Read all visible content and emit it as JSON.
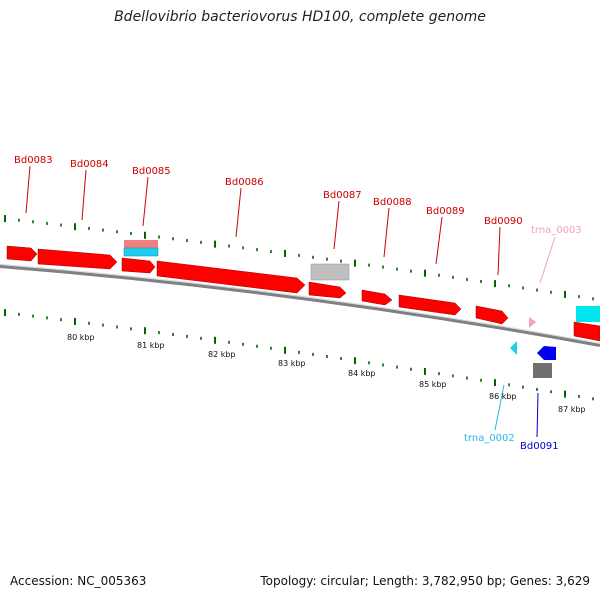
{
  "title": "Bdellovibrio bacteriovorus HD100, complete genome",
  "footer": {
    "accession": "Accession: NC_005363",
    "summary": "Topology: circular; Length: 3,782,950 bp; Genes: 3,629"
  },
  "colors": {
    "gene": "#ff0000",
    "gene_alt": "#0000ee",
    "rrna_pink": "#f08080",
    "trna_cyan": "#22ccee",
    "trna_pink": "#f4a0c0",
    "grey": "#c0c0c0",
    "dark_grey": "#707070",
    "tick": "#006400",
    "backbone": "#808080"
  },
  "scale_labels": [
    "80 kbp",
    "81 kbp",
    "82 kbp",
    "83 kbp",
    "84 kbp",
    "85 kbp",
    "86 kbp",
    "87 kbp"
  ],
  "gene_labels": [
    {
      "text": "Bd0083",
      "color": "#cc0000"
    },
    {
      "text": "Bd0084",
      "color": "#cc0000"
    },
    {
      "text": "Bd0085",
      "color": "#cc0000"
    },
    {
      "text": "Bd0086",
      "color": "#cc0000"
    },
    {
      "text": "Bd0087",
      "color": "#cc0000"
    },
    {
      "text": "Bd0088",
      "color": "#cc0000"
    },
    {
      "text": "Bd0089",
      "color": "#cc0000"
    },
    {
      "text": "Bd0090",
      "color": "#cc0000"
    },
    {
      "text": "trna_0003",
      "color": "#f4a0c0"
    },
    {
      "text": "trna_0002",
      "color": "#22bbee"
    },
    {
      "text": "Bd0091",
      "color": "#0000cc"
    }
  ]
}
